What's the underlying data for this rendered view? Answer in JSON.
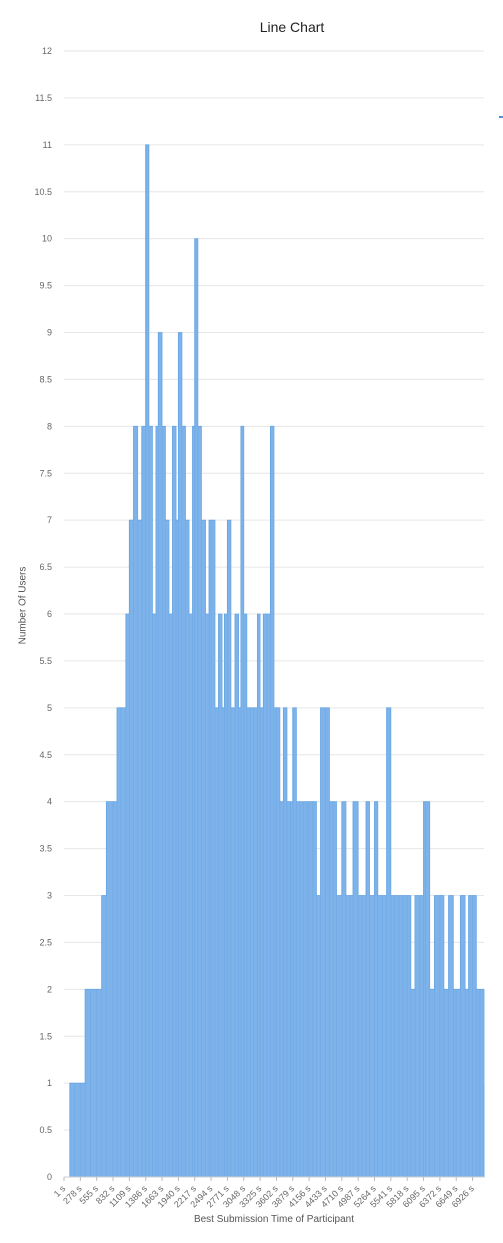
{
  "chart_data": {
    "type": "area",
    "title": "Line Chart",
    "xlabel": "Best Submission Time of Participant",
    "ylabel": "Number Of Users",
    "ylim": [
      0,
      12
    ],
    "y_ticks": [
      "0",
      "0.5",
      "1",
      "1.5",
      "2",
      "2.5",
      "3",
      "3.5",
      "4",
      "4.5",
      "5",
      "5.5",
      "6",
      "6.5",
      "7",
      "7.5",
      "8",
      "8.5",
      "9",
      "9.5",
      "10",
      "10.5",
      "11",
      "11.5",
      "12"
    ],
    "x_ticks": [
      "1 s",
      "278 s",
      "555 s",
      "832 s",
      "1109 s",
      "1386 s",
      "1663 s",
      "1940 s",
      "2217 s",
      "2494 s",
      "2771 s",
      "3048 s",
      "3325 s",
      "3602 s",
      "3879 s",
      "4156 s",
      "4433 s",
      "4710 s",
      "4987 s",
      "5264 s",
      "5541 s",
      "5818 s",
      "6095 s",
      "6372 s",
      "6649 s",
      "6926 s"
    ],
    "grid": true,
    "legend_position": "top-right",
    "colors": {
      "fill": "#7eb3ea",
      "line": "#6aa7e6",
      "grid": "#e6e6e6",
      "legend": "#4a90d9"
    },
    "series": [
      {
        "values": [
          [
            1,
            0
          ],
          [
            100,
            1
          ],
          [
            180,
            1
          ],
          [
            278,
            1
          ],
          [
            360,
            2
          ],
          [
            450,
            2
          ],
          [
            555,
            2
          ],
          [
            640,
            3
          ],
          [
            720,
            4
          ],
          [
            832,
            4
          ],
          [
            900,
            5
          ],
          [
            960,
            5
          ],
          [
            1050,
            6
          ],
          [
            1109,
            7
          ],
          [
            1180,
            8
          ],
          [
            1250,
            7
          ],
          [
            1320,
            8
          ],
          [
            1386,
            11
          ],
          [
            1440,
            8
          ],
          [
            1500,
            6
          ],
          [
            1560,
            8
          ],
          [
            1600,
            9
          ],
          [
            1663,
            8
          ],
          [
            1720,
            7
          ],
          [
            1780,
            6
          ],
          [
            1840,
            8
          ],
          [
            1900,
            7
          ],
          [
            1940,
            9
          ],
          [
            2000,
            8
          ],
          [
            2060,
            7
          ],
          [
            2120,
            6
          ],
          [
            2180,
            8
          ],
          [
            2217,
            10
          ],
          [
            2270,
            8
          ],
          [
            2330,
            7
          ],
          [
            2400,
            6
          ],
          [
            2460,
            7
          ],
          [
            2494,
            7
          ],
          [
            2560,
            5
          ],
          [
            2620,
            6
          ],
          [
            2680,
            5
          ],
          [
            2720,
            6
          ],
          [
            2771,
            7
          ],
          [
            2830,
            5
          ],
          [
            2900,
            6
          ],
          [
            2960,
            5
          ],
          [
            3000,
            8
          ],
          [
            3048,
            6
          ],
          [
            3100,
            5
          ],
          [
            3160,
            5
          ],
          [
            3220,
            5
          ],
          [
            3280,
            6
          ],
          [
            3325,
            5
          ],
          [
            3380,
            6
          ],
          [
            3440,
            6
          ],
          [
            3500,
            8
          ],
          [
            3560,
            5
          ],
          [
            3602,
            5
          ],
          [
            3660,
            4
          ],
          [
            3720,
            5
          ],
          [
            3780,
            4
          ],
          [
            3840,
            4
          ],
          [
            3879,
            5
          ],
          [
            3940,
            4
          ],
          [
            4000,
            4
          ],
          [
            4060,
            4
          ],
          [
            4120,
            4
          ],
          [
            4156,
            4
          ],
          [
            4220,
            4
          ],
          [
            4280,
            3
          ],
          [
            4350,
            5
          ],
          [
            4433,
            5
          ],
          [
            4500,
            4
          ],
          [
            4560,
            4
          ],
          [
            4620,
            3
          ],
          [
            4710,
            4
          ],
          [
            4780,
            3
          ],
          [
            4850,
            3
          ],
          [
            4900,
            4
          ],
          [
            4987,
            3
          ],
          [
            5050,
            3
          ],
          [
            5120,
            4
          ],
          [
            5180,
            3
          ],
          [
            5264,
            4
          ],
          [
            5320,
            3
          ],
          [
            5400,
            3
          ],
          [
            5470,
            5
          ],
          [
            5541,
            3
          ],
          [
            5600,
            3
          ],
          [
            5680,
            3
          ],
          [
            5750,
            3
          ],
          [
            5818,
            3
          ],
          [
            5880,
            2
          ],
          [
            5950,
            3
          ],
          [
            6030,
            3
          ],
          [
            6095,
            4
          ],
          [
            6130,
            4
          ],
          [
            6200,
            2
          ],
          [
            6280,
            3
          ],
          [
            6372,
            3
          ],
          [
            6440,
            2
          ],
          [
            6520,
            3
          ],
          [
            6600,
            2
          ],
          [
            6649,
            2
          ],
          [
            6720,
            3
          ],
          [
            6800,
            2
          ],
          [
            6860,
            3
          ],
          [
            6926,
            3
          ],
          [
            6990,
            2
          ],
          [
            7050,
            2
          ],
          [
            7120,
            1
          ]
        ]
      }
    ]
  }
}
